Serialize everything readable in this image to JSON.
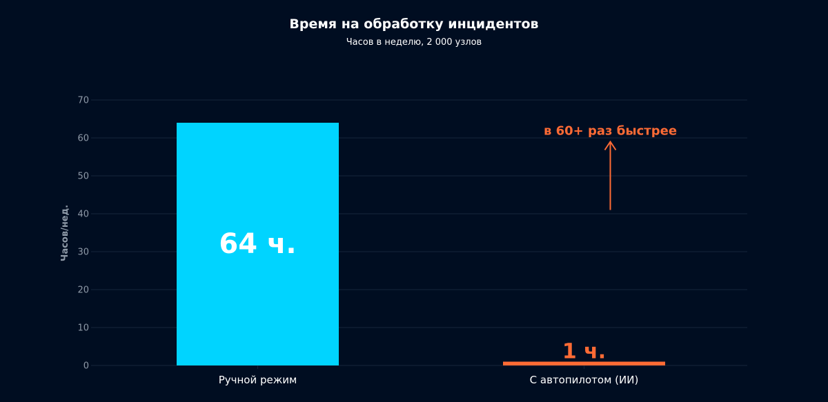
{
  "chart_data": {
    "type": "bar",
    "title": "Время на обработку инцидентов",
    "subtitle": "Часов в неделю, 2 000 узлов",
    "xlabel": "",
    "ylabel": "Часов/нед.",
    "ylim": [
      0,
      70
    ],
    "yticks": [
      0,
      10,
      20,
      30,
      40,
      50,
      60,
      70
    ],
    "grid": true,
    "legend": null,
    "categories": [
      "Ручной режим",
      "С автопилотом (ИИ)"
    ],
    "values": [
      64,
      1
    ],
    "bar_labels": [
      "64 ч.",
      "1 ч."
    ],
    "colors": [
      "#00d4ff",
      "#ff6b35"
    ],
    "annotations": [
      {
        "text": "в 60+ раз быстрее",
        "type": "arrow-up",
        "color": "#ff6b35",
        "x_category": "С автопилотом (ИИ)",
        "from_y": 41,
        "to_y": 59
      }
    ]
  },
  "colors": {
    "background": "#000d21",
    "grid": "#16253a",
    "tick_text": "#8f9aa8",
    "accent_primary": "#00d4ff",
    "accent_secondary": "#ff6b35"
  }
}
